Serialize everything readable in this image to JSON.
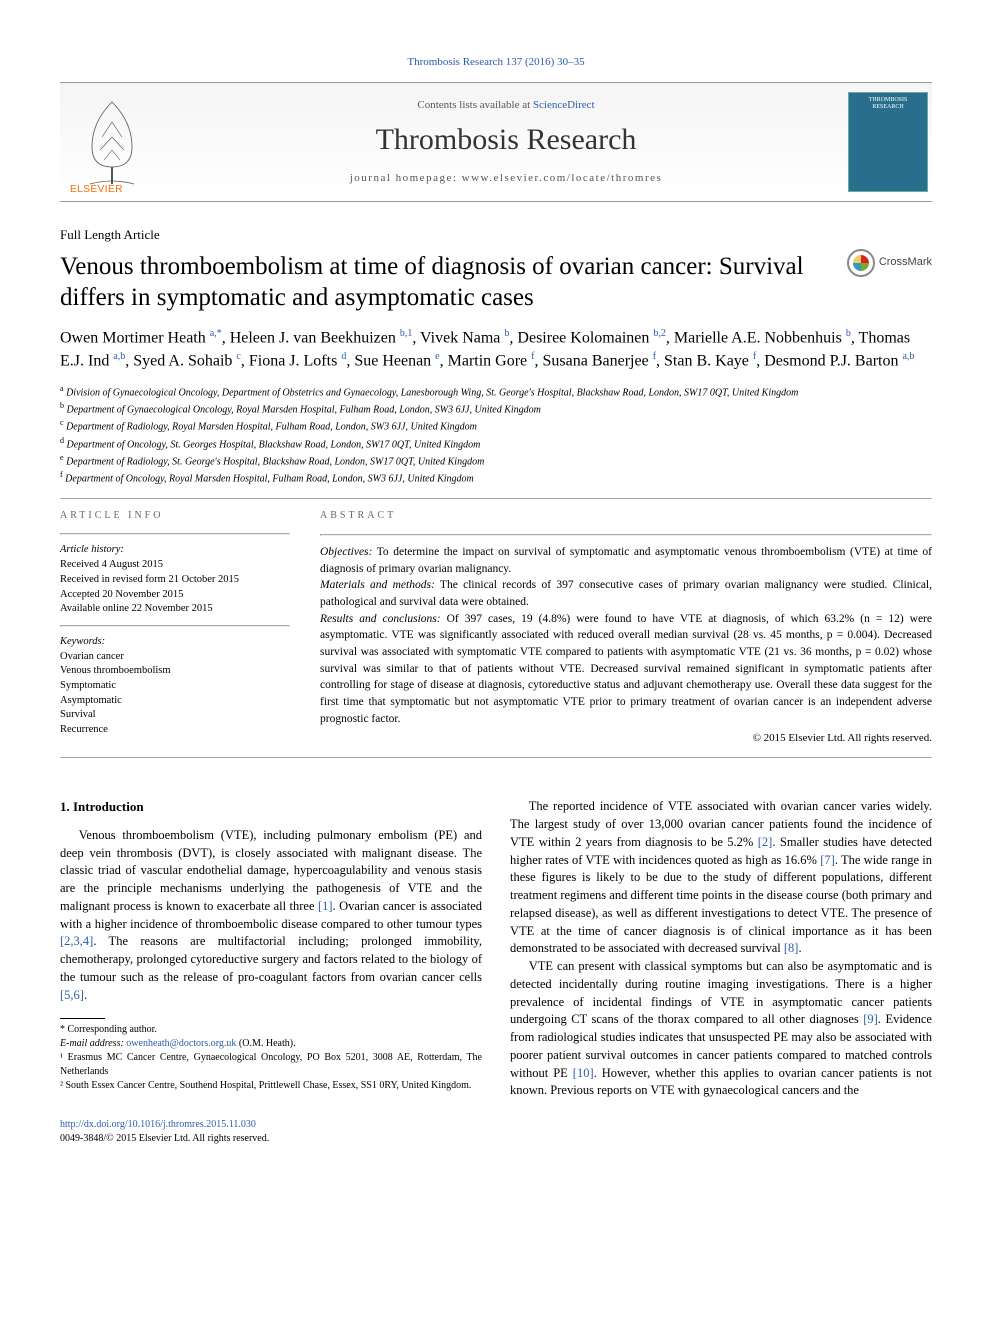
{
  "citation": "Thrombosis Research 137 (2016) 30–35",
  "header": {
    "contents_prefix": "Contents lists available at ",
    "contents_link": "ScienceDirect",
    "journal_title": "Thrombosis Research",
    "homepage_prefix": "journal homepage: ",
    "homepage_url": "www.elsevier.com/locate/thromres",
    "brand": "ELSEVIER",
    "cover_line1": "THROMBOSIS",
    "cover_line2": "RESEARCH"
  },
  "article_type": "Full Length Article",
  "title": "Venous thromboembolism at time of diagnosis of ovarian cancer: Survival differs in symptomatic and asymptomatic cases",
  "crossmark": "CrossMark",
  "authors_html": "Owen Mortimer Heath <sup>a,*</sup>, Heleen J. van Beekhuizen <sup>b,1</sup>, Vivek Nama <sup>b</sup>, Desiree Kolomainen <sup>b,2</sup>, Marielle A.E. Nobbenhuis <sup>b</sup>, Thomas E.J. Ind <sup>a,b</sup>, Syed A. Sohaib <sup>c</sup>, Fiona J. Lofts <sup>d</sup>, Sue Heenan <sup>e</sup>, Martin Gore <sup>f</sup>, Susana Banerjee <sup>f</sup>, Stan B. Kaye <sup>f</sup>, Desmond P.J. Barton <sup>a,b</sup>",
  "affiliations": [
    {
      "sup": "a",
      "text": "Division of Gynaecological Oncology, Department of Obstetrics and Gynaecology, Lanesborough Wing, St. George's Hospital, Blackshaw Road, London, SW17 0QT, United Kingdom"
    },
    {
      "sup": "b",
      "text": "Department of Gynaecological Oncology, Royal Marsden Hospital, Fulham Road, London, SW3 6JJ, United Kingdom"
    },
    {
      "sup": "c",
      "text": "Department of Radiology, Royal Marsden Hospital, Fulham Road, London, SW3 6JJ, United Kingdom"
    },
    {
      "sup": "d",
      "text": "Department of Oncology, St. Georges Hospital, Blackshaw Road, London, SW17 0QT, United Kingdom"
    },
    {
      "sup": "e",
      "text": "Department of Radiology, St. George's Hospital, Blackshaw Road, London, SW17 0QT, United Kingdom"
    },
    {
      "sup": "f",
      "text": "Department of Oncology, Royal Marsden Hospital, Fulham Road, London, SW3 6JJ, United Kingdom"
    }
  ],
  "info": {
    "section_label": "ARTICLE INFO",
    "history_head": "Article history:",
    "history": [
      "Received 4 August 2015",
      "Received in revised form 21 October 2015",
      "Accepted 20 November 2015",
      "Available online 22 November 2015"
    ],
    "keywords_head": "Keywords:",
    "keywords": [
      "Ovarian cancer",
      "Venous thromboembolism",
      "Symptomatic",
      "Asymptomatic",
      "Survival",
      "Recurrence"
    ]
  },
  "abstract": {
    "section_label": "ABSTRACT",
    "objectives_label": "Objectives:",
    "objectives": " To determine the impact on survival of symptomatic and asymptomatic venous thromboembolism (VTE) at time of diagnosis of primary ovarian malignancy.",
    "methods_label": "Materials and methods:",
    "methods": " The clinical records of 397 consecutive cases of primary ovarian malignancy were studied. Clinical, pathological and survival data were obtained.",
    "results_label": "Results and conclusions:",
    "results": " Of 397 cases, 19 (4.8%) were found to have VTE at diagnosis, of which 63.2% (n = 12) were asymptomatic. VTE was significantly associated with reduced overall median survival (28 vs. 45 months, p = 0.004). Decreased survival was associated with symptomatic VTE compared to patients with asymptomatic VTE (21 vs. 36 months, p = 0.02) whose survival was similar to that of patients without VTE. Decreased survival remained significant in symptomatic patients after controlling for stage of disease at diagnosis, cytoreductive status and adjuvant chemotherapy use. Overall these data suggest for the first time that symptomatic but not asymptomatic VTE prior to primary treatment of ovarian cancer is an independent adverse prognostic factor.",
    "copyright": "© 2015 Elsevier Ltd. All rights reserved."
  },
  "intro": {
    "heading": "1. Introduction",
    "left_p1_pre": "Venous thromboembolism (VTE), including pulmonary embolism (PE) and deep vein thrombosis (DVT), is closely associated with malignant disease. The classic triad of vascular endothelial damage, hypercoagulability and venous stasis are the principle mechanisms underlying the pathogenesis of VTE and the malignant process is known to exacerbate all three ",
    "ref1": "[1]",
    "left_p1_mid": ". Ovarian cancer is associated with a higher incidence of thromboembolic disease compared to other tumour types ",
    "ref234": "[2,3,4]",
    "left_p1_post": ". The reasons are multifactorial including; prolonged immobility, chemotherapy, prolonged cytoreductive surgery and factors related to the biology of the tumour such as the release of pro-coagulant factors from ovarian cancer cells ",
    "ref56": "[5,6]",
    "left_period": ".",
    "right_p1_pre": "The reported incidence of VTE associated with ovarian cancer varies widely. The largest study of over 13,000 ovarian cancer patients found the incidence of VTE within 2 years from diagnosis to be 5.2% ",
    "ref2": "[2]",
    "right_p1_mid": ". Smaller studies have detected higher rates of VTE with incidences quoted as high as 16.6% ",
    "ref7": "[7]",
    "right_p1_post": ". The wide range in these figures is likely to be due to the study of different populations, different treatment regimens and different time points in the disease course (both primary and relapsed disease), as well as different investigations to detect VTE. The presence of VTE at the time of cancer diagnosis is of clinical importance as it has been demonstrated to be associated with decreased survival ",
    "ref8": "[8]",
    "right_p1_end": ".",
    "right_p2_pre": "VTE can present with classical symptoms but can also be asymptomatic and is detected incidentally during routine imaging investigations. There is a higher prevalence of incidental findings of VTE in asymptomatic cancer patients undergoing CT scans of the thorax compared to all other diagnoses ",
    "ref9": "[9]",
    "right_p2_mid": ". Evidence from radiological studies indicates that unsuspected PE may also be associated with poorer patient survival outcomes in cancer patients compared to matched controls without PE ",
    "ref10": "[10]",
    "right_p2_post": ". However, whether this applies to ovarian cancer patients is not known. Previous reports on VTE with gynaecological cancers and the"
  },
  "footnotes": {
    "corr": "* Corresponding author.",
    "email_label": "E-mail address: ",
    "email": "owenheath@doctors.org.uk",
    "email_post": " (O.M. Heath).",
    "fn1": "¹ Erasmus MC Cancer Centre, Gynaecological Oncology, PO Box 5201, 3008 AE, Rotterdam, The Netherlands",
    "fn2": "² South Essex Cancer Centre, Southend Hospital, Prittlewell Chase, Essex, SS1 0RY, United Kingdom."
  },
  "doi": {
    "url": "http://dx.doi.org/10.1016/j.thromres.2015.11.030",
    "line2": "0049-3848/© 2015 Elsevier Ltd. All rights reserved."
  },
  "colors": {
    "link": "#2a5db0",
    "brand": "#ff6a00",
    "cover_bg": "#2a6e8e"
  }
}
